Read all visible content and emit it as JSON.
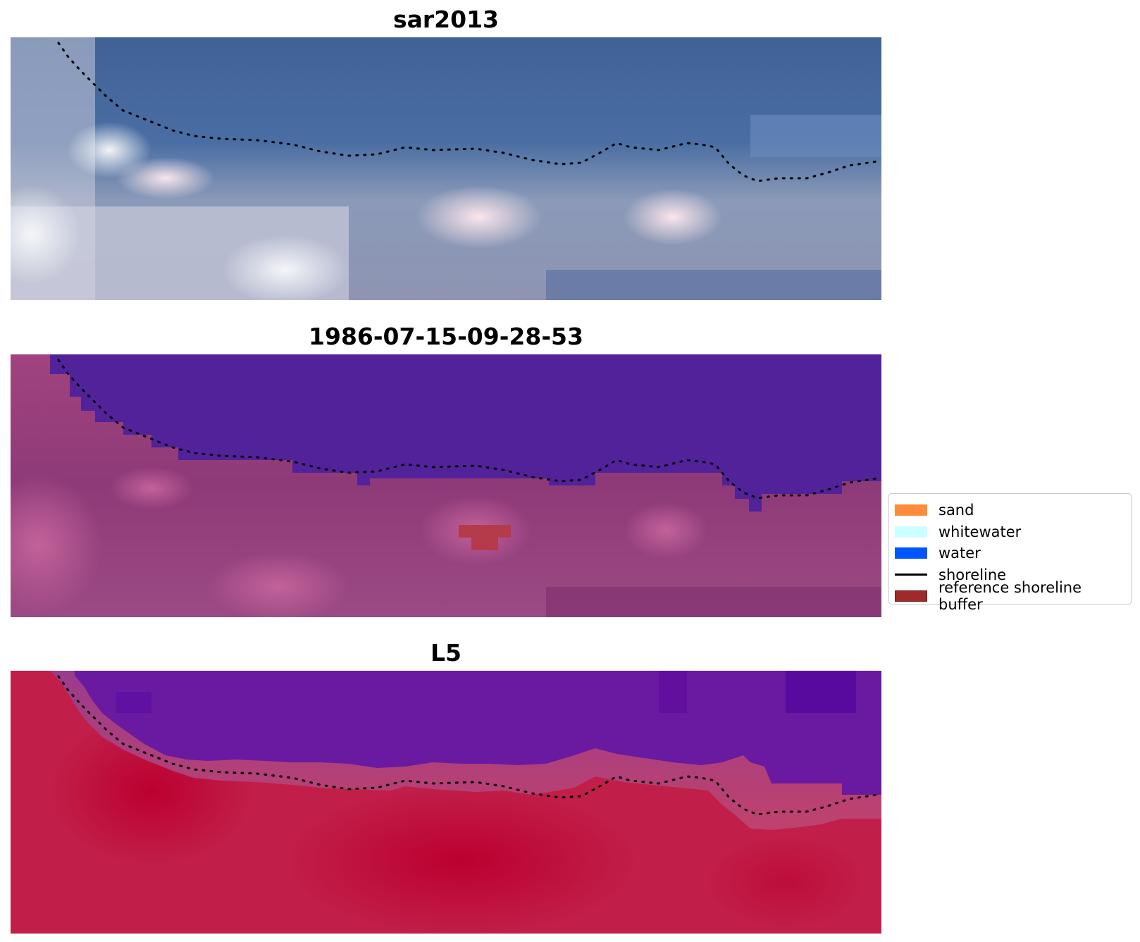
{
  "panels": [
    {
      "title": "sar2013",
      "scene": "rgb"
    },
    {
      "title": "1986-07-15-09-28-53",
      "scene": "classified"
    },
    {
      "title": "L5",
      "scene": "ndwi"
    }
  ],
  "legend": {
    "items": [
      {
        "label": "sand",
        "color": "#ff8c3b",
        "kind": "patch"
      },
      {
        "label": "whitewater",
        "color": "#ccffff",
        "kind": "patch"
      },
      {
        "label": "water",
        "color": "#0055ff",
        "kind": "patch"
      },
      {
        "label": "shoreline",
        "color": "#000000",
        "kind": "line"
      },
      {
        "label": "reference shoreline buffer",
        "color": "#9e2a2b",
        "kind": "patch"
      }
    ]
  }
}
